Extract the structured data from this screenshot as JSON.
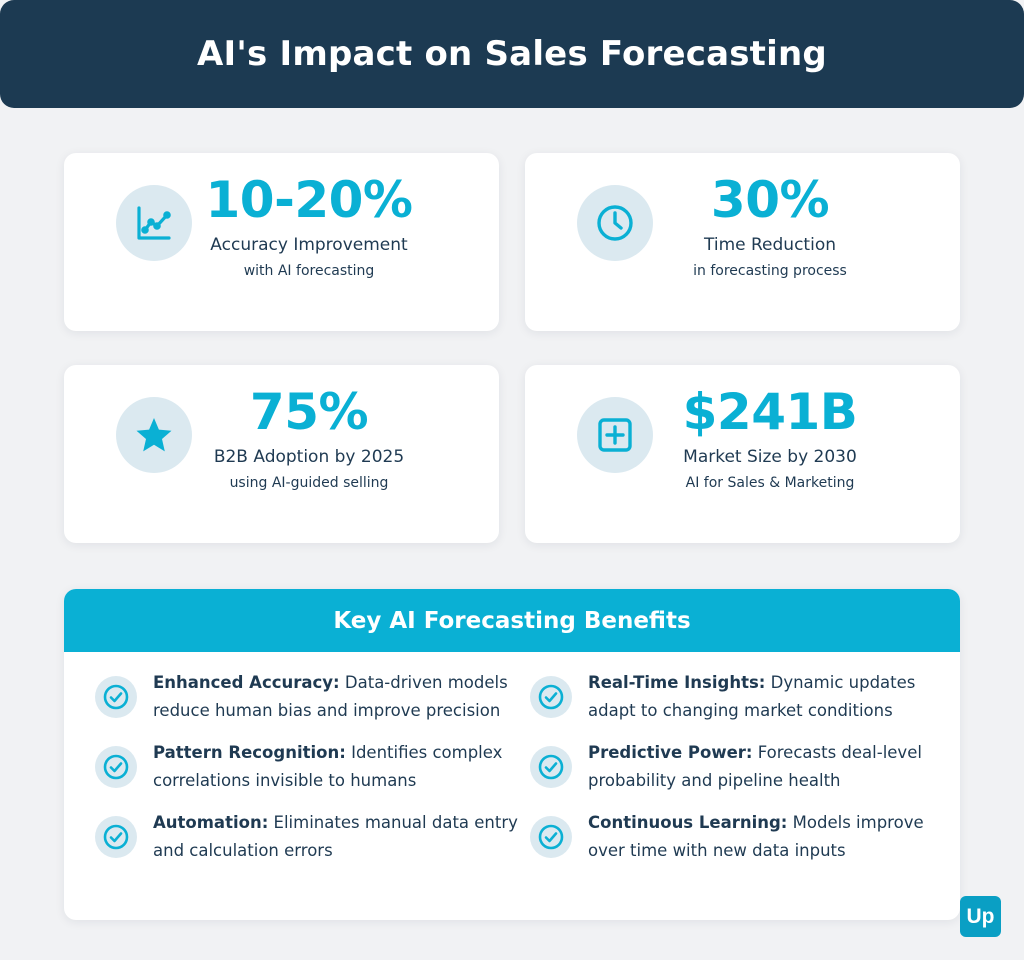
{
  "title": "AI's Impact on Sales Forecasting",
  "stats": [
    {
      "value": "10-20%",
      "label": "Accuracy Improvement",
      "sub": "with AI forecasting",
      "icon": "line-chart-icon"
    },
    {
      "value": "30%",
      "label": "Time Reduction",
      "sub": "in forecasting process",
      "icon": "clock-icon"
    },
    {
      "value": "75%",
      "label": "B2B Adoption by 2025",
      "sub": "using AI-guided selling",
      "icon": "star-icon"
    },
    {
      "value": "$241B",
      "label": "Market Size by 2030",
      "sub": "AI for Sales & Marketing",
      "icon": "plus-square-icon"
    }
  ],
  "benefits": {
    "title": "Key AI Forecasting Benefits",
    "items": [
      {
        "term": "Enhanced Accuracy:",
        "desc": "Data-driven models reduce human bias and improve precision"
      },
      {
        "term": "Real-Time Insights:",
        "desc": "Dynamic updates adapt to changing market conditions"
      },
      {
        "term": "Pattern Recognition:",
        "desc": "Identifies complex correlations invisible to humans"
      },
      {
        "term": "Predictive Power:",
        "desc": "Forecasts deal-level probability and pipeline health"
      },
      {
        "term": "Automation:",
        "desc": "Eliminates manual data entry and calculation errors"
      },
      {
        "term": "Continuous Learning:",
        "desc": "Models improve over time with new data inputs"
      }
    ]
  },
  "logo": "Up",
  "colors": {
    "header_bg": "#1c3a52",
    "accent": "#0ab0d4",
    "icon_bg": "#dbe9f0",
    "text": "#1f3a52",
    "page_bg": "#f1f2f4"
  }
}
